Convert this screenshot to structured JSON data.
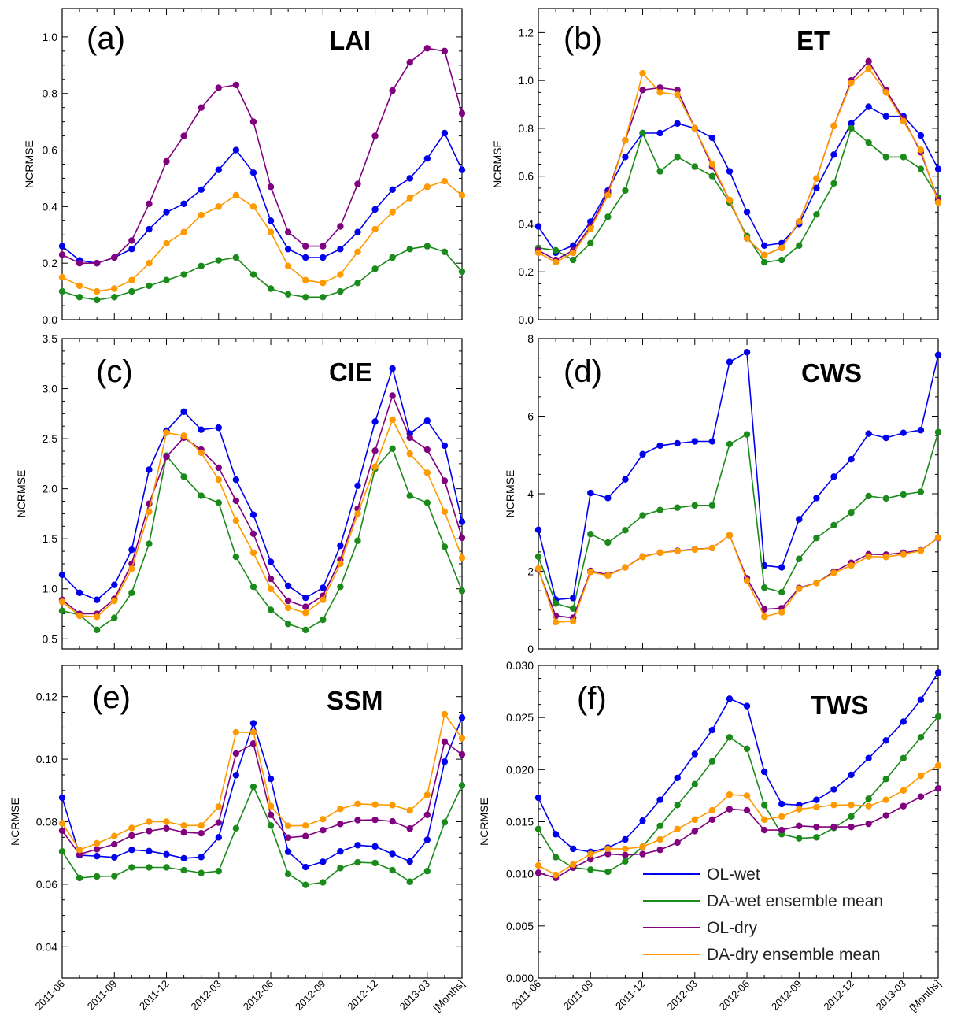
{
  "chart_data": {
    "type": "line",
    "x_tick_labels": [
      "2011-06",
      "2011-09",
      "2011-12",
      "2012-03",
      "2012-06",
      "2012-09",
      "2012-12",
      "2013-03",
      "[Months]"
    ],
    "n_points": 24,
    "legend": [
      {
        "name": "OL-wet",
        "color": "#0000ee"
      },
      {
        "name": "DA-wet ensemble mean",
        "color": "#1a8a1a"
      },
      {
        "name": "OL-dry",
        "color": "#800080"
      },
      {
        "name": "DA-dry ensemble mean",
        "color": "#ff9900"
      }
    ],
    "panels": [
      {
        "letter": "(a)",
        "variable": "LAI",
        "ylabel": "NCRMSE",
        "ylim": [
          0.0,
          1.1
        ],
        "yticks": [
          "0.0",
          "0.2",
          "0.4",
          "0.6",
          "0.8",
          "1.0"
        ],
        "series": [
          {
            "name": "OL-wet",
            "color": "#0000ee",
            "values": [
              0.26,
              0.21,
              0.2,
              0.22,
              0.25,
              0.32,
              0.38,
              0.41,
              0.46,
              0.53,
              0.6,
              0.52,
              0.35,
              0.25,
              0.22,
              0.22,
              0.25,
              0.31,
              0.39,
              0.46,
              0.5,
              0.57,
              0.66,
              0.53
            ]
          },
          {
            "name": "DA-wet ensemble mean",
            "color": "#1a8a1a",
            "values": [
              0.1,
              0.08,
              0.07,
              0.08,
              0.1,
              0.12,
              0.14,
              0.16,
              0.19,
              0.21,
              0.22,
              0.16,
              0.11,
              0.09,
              0.08,
              0.08,
              0.1,
              0.13,
              0.18,
              0.22,
              0.25,
              0.26,
              0.24,
              0.17
            ]
          },
          {
            "name": "OL-dry",
            "color": "#800080",
            "values": [
              0.23,
              0.2,
              0.2,
              0.22,
              0.28,
              0.41,
              0.56,
              0.65,
              0.75,
              0.82,
              0.83,
              0.7,
              0.47,
              0.31,
              0.26,
              0.26,
              0.33,
              0.48,
              0.65,
              0.81,
              0.91,
              0.96,
              0.95,
              0.73
            ]
          },
          {
            "name": "DA-dry ensemble mean",
            "color": "#ff9900",
            "values": [
              0.15,
              0.12,
              0.1,
              0.11,
              0.14,
              0.2,
              0.27,
              0.31,
              0.37,
              0.4,
              0.44,
              0.4,
              0.31,
              0.19,
              0.14,
              0.13,
              0.16,
              0.24,
              0.32,
              0.38,
              0.43,
              0.47,
              0.49,
              0.44
            ]
          }
        ]
      },
      {
        "letter": "(b)",
        "variable": "ET",
        "ylabel": "NCRMSE",
        "ylim": [
          0.0,
          1.3
        ],
        "yticks": [
          "0.0",
          "0.2",
          "0.4",
          "0.6",
          "0.8",
          "1.0",
          "1.2"
        ],
        "series": [
          {
            "name": "OL-wet",
            "color": "#0000ee",
            "values": [
              0.39,
              0.28,
              0.31,
              0.41,
              0.54,
              0.68,
              0.78,
              0.78,
              0.82,
              0.8,
              0.76,
              0.62,
              0.45,
              0.31,
              0.32,
              0.4,
              0.55,
              0.69,
              0.82,
              0.89,
              0.85,
              0.85,
              0.77,
              0.63
            ]
          },
          {
            "name": "DA-wet ensemble mean",
            "color": "#1a8a1a",
            "values": [
              0.3,
              0.29,
              0.25,
              0.32,
              0.43,
              0.54,
              0.78,
              0.62,
              0.68,
              0.64,
              0.6,
              0.49,
              0.35,
              0.24,
              0.25,
              0.31,
              0.44,
              0.57,
              0.8,
              0.74,
              0.68,
              0.68,
              0.63,
              0.51
            ]
          },
          {
            "name": "OL-dry",
            "color": "#800080",
            "values": [
              0.29,
              0.25,
              0.29,
              0.39,
              0.53,
              0.75,
              0.96,
              0.97,
              0.96,
              0.8,
              0.64,
              0.5,
              0.34,
              0.27,
              0.3,
              0.41,
              0.59,
              0.81,
              1.0,
              1.08,
              0.96,
              0.84,
              0.7,
              0.5
            ]
          },
          {
            "name": "DA-dry ensemble mean",
            "color": "#ff9900",
            "values": [
              0.28,
              0.24,
              0.28,
              0.38,
              0.52,
              0.75,
              1.03,
              0.95,
              0.94,
              0.8,
              0.65,
              0.5,
              0.34,
              0.27,
              0.3,
              0.41,
              0.59,
              0.81,
              0.99,
              1.05,
              0.95,
              0.83,
              0.71,
              0.49
            ]
          }
        ]
      },
      {
        "letter": "(c)",
        "variable": "CIE",
        "ylabel": "NCRMSE",
        "ylim": [
          0.4,
          3.5
        ],
        "yticks": [
          "0.5",
          "1.0",
          "1.5",
          "2.0",
          "2.5",
          "3.0",
          "3.5"
        ],
        "series": [
          {
            "name": "OL-wet",
            "color": "#0000ee",
            "values": [
              1.14,
              0.96,
              0.89,
              1.04,
              1.39,
              2.19,
              2.58,
              2.77,
              2.59,
              2.61,
              2.09,
              1.74,
              1.27,
              1.03,
              0.91,
              1.01,
              1.43,
              2.03,
              2.67,
              3.2,
              2.55,
              2.68,
              2.43,
              1.67
            ]
          },
          {
            "name": "DA-wet ensemble mean",
            "color": "#1a8a1a",
            "values": [
              0.78,
              0.74,
              0.59,
              0.71,
              0.96,
              1.45,
              2.33,
              2.12,
              1.93,
              1.86,
              1.32,
              1.02,
              0.79,
              0.65,
              0.59,
              0.69,
              1.02,
              1.48,
              2.2,
              2.4,
              1.93,
              1.86,
              1.42,
              0.98
            ]
          },
          {
            "name": "OL-dry",
            "color": "#800080",
            "values": [
              0.89,
              0.75,
              0.75,
              0.9,
              1.25,
              1.85,
              2.32,
              2.51,
              2.39,
              2.21,
              1.88,
              1.55,
              1.1,
              0.88,
              0.82,
              0.93,
              1.29,
              1.8,
              2.38,
              2.93,
              2.51,
              2.39,
              2.08,
              1.51
            ]
          },
          {
            "name": "DA-dry ensemble mean",
            "color": "#ff9900",
            "values": [
              0.87,
              0.73,
              0.72,
              0.88,
              1.2,
              1.77,
              2.56,
              2.53,
              2.36,
              2.09,
              1.68,
              1.36,
              1.0,
              0.81,
              0.76,
              0.89,
              1.25,
              1.75,
              2.22,
              2.69,
              2.35,
              2.16,
              1.77,
              1.31
            ]
          }
        ]
      },
      {
        "letter": "(d)",
        "variable": "CWS",
        "ylabel": "NCRMSE",
        "ylim": [
          0,
          8
        ],
        "yticks": [
          "0",
          "2",
          "4",
          "6",
          "8"
        ],
        "series": [
          {
            "name": "OL-wet",
            "color": "#0000ee",
            "values": [
              3.07,
              1.27,
              1.31,
              4.02,
              3.89,
              4.37,
              5.02,
              5.24,
              5.3,
              5.35,
              5.35,
              7.4,
              7.65,
              2.15,
              2.1,
              3.34,
              3.89,
              4.44,
              4.89,
              5.55,
              5.44,
              5.57,
              5.64,
              7.58
            ]
          },
          {
            "name": "DA-wet ensemble mean",
            "color": "#1a8a1a",
            "values": [
              2.38,
              1.17,
              1.04,
              2.96,
              2.74,
              3.06,
              3.44,
              3.58,
              3.64,
              3.7,
              3.7,
              5.28,
              5.53,
              1.58,
              1.46,
              2.32,
              2.86,
              3.19,
              3.51,
              3.94,
              3.88,
              3.98,
              4.05,
              5.59
            ]
          },
          {
            "name": "OL-dry",
            "color": "#800080",
            "values": [
              2.04,
              0.85,
              0.8,
              2.01,
              1.91,
              2.1,
              2.38,
              2.48,
              2.53,
              2.57,
              2.6,
              2.93,
              1.82,
              1.02,
              1.05,
              1.57,
              1.7,
              1.99,
              2.22,
              2.44,
              2.43,
              2.48,
              2.54,
              2.86
            ]
          },
          {
            "name": "DA-dry ensemble mean",
            "color": "#ff9900",
            "values": [
              2.07,
              0.69,
              0.71,
              1.98,
              1.89,
              2.1,
              2.37,
              2.48,
              2.52,
              2.56,
              2.6,
              2.93,
              1.76,
              0.83,
              0.94,
              1.55,
              1.7,
              1.96,
              2.15,
              2.38,
              2.37,
              2.44,
              2.53,
              2.87
            ]
          }
        ]
      },
      {
        "letter": "(e)",
        "variable": "SSM",
        "ylabel": "NCRMSE",
        "ylim": [
          0.03,
          0.13
        ],
        "yticks": [
          "0.04",
          "0.06",
          "0.08",
          "0.10",
          "0.12"
        ],
        "series": [
          {
            "name": "OL-wet",
            "color": "#0000ee",
            "values": [
              0.0877,
              0.0693,
              0.069,
              0.0686,
              0.071,
              0.0706,
              0.0696,
              0.0683,
              0.0687,
              0.075,
              0.0949,
              0.1115,
              0.0937,
              0.0704,
              0.0655,
              0.0672,
              0.0705,
              0.0725,
              0.0721,
              0.0697,
              0.0673,
              0.0742,
              0.0992,
              0.1133
            ]
          },
          {
            "name": "DA-wet ensemble mean",
            "color": "#1a8a1a",
            "values": [
              0.0705,
              0.062,
              0.0625,
              0.0626,
              0.0654,
              0.0654,
              0.0654,
              0.0645,
              0.0636,
              0.0642,
              0.0779,
              0.0912,
              0.0788,
              0.0633,
              0.0598,
              0.0606,
              0.0652,
              0.067,
              0.0668,
              0.0645,
              0.0608,
              0.0642,
              0.0798,
              0.0916
            ]
          },
          {
            "name": "OL-dry",
            "color": "#800080",
            "values": [
              0.0771,
              0.0696,
              0.0712,
              0.0728,
              0.0756,
              0.077,
              0.0779,
              0.0766,
              0.0763,
              0.0797,
              0.1018,
              0.105,
              0.0822,
              0.0749,
              0.0754,
              0.0773,
              0.0793,
              0.0805,
              0.0806,
              0.0801,
              0.0778,
              0.0822,
              0.1056,
              0.1015
            ]
          },
          {
            "name": "DA-dry ensemble mean",
            "color": "#ff9900",
            "values": [
              0.0795,
              0.071,
              0.0731,
              0.0754,
              0.078,
              0.08,
              0.08,
              0.0788,
              0.0788,
              0.0848,
              0.1086,
              0.1086,
              0.085,
              0.0787,
              0.0788,
              0.0808,
              0.0841,
              0.0857,
              0.0855,
              0.0853,
              0.0836,
              0.0886,
              0.1144,
              0.1067
            ]
          }
        ]
      },
      {
        "letter": "(f)",
        "variable": "TWS",
        "ylabel": "NCRMSE",
        "ylim": [
          0.0,
          0.03
        ],
        "yticks": [
          "0.000",
          "0.005",
          "0.010",
          "0.015",
          "0.020",
          "0.025",
          "0.030"
        ],
        "series": [
          {
            "name": "OL-wet",
            "color": "#0000ee",
            "values": [
              0.0173,
              0.0138,
              0.0124,
              0.0121,
              0.0125,
              0.0133,
              0.0151,
              0.0171,
              0.0192,
              0.0215,
              0.0238,
              0.0268,
              0.0261,
              0.0198,
              0.0167,
              0.0166,
              0.0171,
              0.0181,
              0.0195,
              0.0211,
              0.0228,
              0.0246,
              0.0267,
              0.0293
            ]
          },
          {
            "name": "DA-wet ensemble mean",
            "color": "#1a8a1a",
            "values": [
              0.0143,
              0.0116,
              0.0106,
              0.0104,
              0.0102,
              0.0112,
              0.0126,
              0.0146,
              0.0166,
              0.0186,
              0.0208,
              0.0231,
              0.022,
              0.0166,
              0.0138,
              0.0134,
              0.0135,
              0.0144,
              0.0155,
              0.0172,
              0.0191,
              0.0211,
              0.0231,
              0.0251
            ]
          },
          {
            "name": "OL-dry",
            "color": "#800080",
            "values": [
              0.0101,
              0.0096,
              0.0106,
              0.0114,
              0.0119,
              0.0118,
              0.0119,
              0.0123,
              0.013,
              0.0141,
              0.0152,
              0.0162,
              0.0161,
              0.0142,
              0.0142,
              0.0146,
              0.0145,
              0.0145,
              0.0145,
              0.0148,
              0.0156,
              0.0165,
              0.0174,
              0.0182
            ]
          },
          {
            "name": "DA-dry ensemble mean",
            "color": "#ff9900",
            "values": [
              0.0108,
              0.0099,
              0.0109,
              0.0119,
              0.0124,
              0.0124,
              0.0126,
              0.0133,
              0.0143,
              0.0152,
              0.0161,
              0.0176,
              0.0175,
              0.0152,
              0.0155,
              0.0162,
              0.0164,
              0.0166,
              0.0166,
              0.0165,
              0.0171,
              0.018,
              0.0194,
              0.0204
            ]
          }
        ]
      }
    ]
  }
}
